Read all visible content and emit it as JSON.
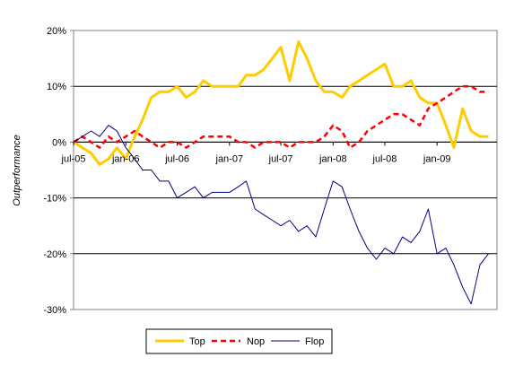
{
  "chart_data": {
    "type": "line",
    "ylabel": "Outperformance",
    "ylim": [
      -30,
      20
    ],
    "yticks": [
      -30,
      -20,
      -10,
      0,
      10,
      20
    ],
    "ytick_labels": [
      "-30%",
      "-20%",
      "-10%",
      "0%",
      "10%",
      "20%"
    ],
    "xlim": [
      "2005-07-01",
      "2009-07-31"
    ],
    "xtick_labels": [
      "jul-05",
      "jan-06",
      "jul-06",
      "jan-07",
      "jul-07",
      "jan-08",
      "jul-08",
      "jan-09"
    ],
    "xtick_dates": [
      "2005-07-01",
      "2006-01-01",
      "2006-07-01",
      "2007-01-01",
      "2007-07-01",
      "2008-01-01",
      "2008-07-01",
      "2009-01-01"
    ],
    "grid": "horizontal",
    "legend_position": "bottom",
    "series": [
      {
        "name": "Top",
        "color": "#FFCC00",
        "style": "solid",
        "x": [
          "2005-07-01",
          "2005-08-01",
          "2005-09-01",
          "2005-10-01",
          "2005-11-01",
          "2005-12-01",
          "2006-01-01",
          "2006-02-01",
          "2006-03-01",
          "2006-04-01",
          "2006-05-01",
          "2006-06-01",
          "2006-07-01",
          "2006-08-01",
          "2006-09-01",
          "2006-10-01",
          "2006-11-01",
          "2006-12-01",
          "2007-01-01",
          "2007-02-01",
          "2007-03-01",
          "2007-04-01",
          "2007-05-01",
          "2007-06-01",
          "2007-07-01",
          "2007-08-01",
          "2007-09-01",
          "2007-10-01",
          "2007-11-01",
          "2007-12-01",
          "2008-01-01",
          "2008-02-01",
          "2008-03-01",
          "2008-04-01",
          "2008-05-01",
          "2008-06-01",
          "2008-07-01",
          "2008-08-01",
          "2008-09-01",
          "2008-10-01",
          "2008-11-01",
          "2008-12-01",
          "2009-01-01",
          "2009-02-01",
          "2009-03-01",
          "2009-04-01",
          "2009-05-01",
          "2009-06-01",
          "2009-07-01"
        ],
        "values": [
          0,
          -1,
          -2,
          -4,
          -3,
          -1,
          -3,
          1,
          4,
          8,
          9,
          9,
          10,
          8,
          9,
          11,
          10,
          10,
          10,
          10,
          12,
          12,
          13,
          15,
          17,
          11,
          18,
          15,
          11,
          9,
          9,
          8,
          10,
          11,
          12,
          13,
          14,
          10,
          10,
          11,
          8,
          7,
          7,
          3,
          -1,
          6,
          2,
          1,
          1
        ]
      },
      {
        "name": "Nop",
        "color": "#FF0000",
        "style": "dashed",
        "x": [
          "2005-07-01",
          "2005-08-01",
          "2005-09-01",
          "2005-10-01",
          "2005-11-01",
          "2005-12-01",
          "2006-01-01",
          "2006-02-01",
          "2006-03-01",
          "2006-04-01",
          "2006-05-01",
          "2006-06-01",
          "2006-07-01",
          "2006-08-01",
          "2006-09-01",
          "2006-10-01",
          "2006-11-01",
          "2006-12-01",
          "2007-01-01",
          "2007-02-01",
          "2007-03-01",
          "2007-04-01",
          "2007-05-01",
          "2007-06-01",
          "2007-07-01",
          "2007-08-01",
          "2007-09-01",
          "2007-10-01",
          "2007-11-01",
          "2007-12-01",
          "2008-01-01",
          "2008-02-01",
          "2008-03-01",
          "2008-04-01",
          "2008-05-01",
          "2008-06-01",
          "2008-07-01",
          "2008-08-01",
          "2008-09-01",
          "2008-10-01",
          "2008-11-01",
          "2008-12-01",
          "2009-01-01",
          "2009-02-01",
          "2009-03-01",
          "2009-04-01",
          "2009-05-01",
          "2009-06-01",
          "2009-07-01"
        ],
        "values": [
          0,
          1,
          0,
          -1,
          1,
          0,
          1,
          2,
          1,
          0,
          -1,
          0,
          0,
          -1,
          0,
          1,
          1,
          1,
          1,
          0,
          0,
          -1,
          0,
          0,
          0,
          -1,
          0,
          0,
          0,
          1,
          3,
          2,
          -1,
          0,
          2,
          3,
          4,
          5,
          5,
          4,
          3,
          6,
          7,
          8,
          9,
          10,
          10,
          9,
          9
        ]
      },
      {
        "name": "Flop",
        "color": "#000080",
        "style": "solid",
        "x": [
          "2005-07-01",
          "2005-08-01",
          "2005-09-01",
          "2005-10-01",
          "2005-11-01",
          "2005-12-01",
          "2006-01-01",
          "2006-02-01",
          "2006-03-01",
          "2006-04-01",
          "2006-05-01",
          "2006-06-01",
          "2006-07-01",
          "2006-08-01",
          "2006-09-01",
          "2006-10-01",
          "2006-11-01",
          "2006-12-01",
          "2007-01-01",
          "2007-02-01",
          "2007-03-01",
          "2007-04-01",
          "2007-05-01",
          "2007-06-01",
          "2007-07-01",
          "2007-08-01",
          "2007-09-01",
          "2007-10-01",
          "2007-11-01",
          "2007-12-01",
          "2008-01-01",
          "2008-02-01",
          "2008-03-01",
          "2008-04-01",
          "2008-05-01",
          "2008-06-01",
          "2008-07-01",
          "2008-08-01",
          "2008-09-01",
          "2008-10-01",
          "2008-11-01",
          "2008-12-01",
          "2009-01-01",
          "2009-02-01",
          "2009-03-01",
          "2009-04-01",
          "2009-05-01",
          "2009-06-01",
          "2009-07-01"
        ],
        "values": [
          0,
          1,
          2,
          1,
          3,
          2,
          -1,
          -3,
          -5,
          -5,
          -7,
          -7,
          -10,
          -9,
          -8,
          -10,
          -9,
          -9,
          -9,
          -8,
          -7,
          -12,
          -13,
          -14,
          -15,
          -14,
          -16,
          -15,
          -17,
          -12,
          -7,
          -8,
          -12,
          -16,
          -19,
          -21,
          -19,
          -20,
          -17,
          -18,
          -16,
          -12,
          -20,
          -19,
          -22,
          -26,
          -29,
          -22,
          -20
        ]
      }
    ]
  }
}
